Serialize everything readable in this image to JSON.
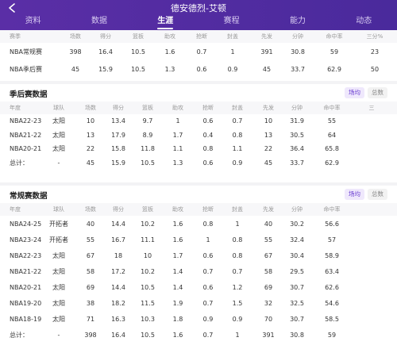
{
  "header": {
    "title": "德安德烈-艾顿",
    "tabs": [
      "资料",
      "数据",
      "生涯",
      "赛程",
      "能力",
      "动态"
    ],
    "active_tab": 2
  },
  "summary": {
    "columns": [
      "赛季",
      "场数",
      "得分",
      "篮板",
      "助攻",
      "抢断",
      "封盖",
      "先发",
      "分钟",
      "命中率",
      "三分%"
    ],
    "rows": [
      [
        "NBA常规赛",
        "398",
        "16.4",
        "10.5",
        "1.6",
        "0.7",
        "1",
        "391",
        "30.8",
        "59",
        "23"
      ],
      [
        "NBA季后赛",
        "45",
        "15.9",
        "10.5",
        "1.3",
        "0.6",
        "0.9",
        "45",
        "33.7",
        "62.9",
        "50"
      ]
    ]
  },
  "playoffs": {
    "title": "季后赛数据",
    "toggle": [
      "场均",
      "总数"
    ],
    "columns": [
      "年度",
      "球队",
      "场数",
      "得分",
      "篮板",
      "助攻",
      "抢断",
      "封盖",
      "先发",
      "分钟",
      "命中率",
      "三"
    ],
    "rows": [
      [
        "NBA22-23",
        "太阳",
        "10",
        "13.4",
        "9.7",
        "1",
        "0.6",
        "0.7",
        "10",
        "31.9",
        "55",
        ""
      ],
      [
        "NBA21-22",
        "太阳",
        "13",
        "17.9",
        "8.9",
        "1.7",
        "0.4",
        "0.8",
        "13",
        "30.5",
        "64",
        ""
      ],
      [
        "NBA20-21",
        "太阳",
        "22",
        "15.8",
        "11.8",
        "1.1",
        "0.8",
        "1.1",
        "22",
        "36.4",
        "65.8",
        ""
      ],
      [
        "总计：",
        "-",
        "45",
        "15.9",
        "10.5",
        "1.3",
        "0.6",
        "0.9",
        "45",
        "33.7",
        "62.9",
        ""
      ]
    ]
  },
  "regular": {
    "title": "常规赛数据",
    "toggle": [
      "场均",
      "总数"
    ],
    "columns": [
      "年度",
      "球队",
      "场数",
      "得分",
      "篮板",
      "助攻",
      "抢断",
      "封盖",
      "先发",
      "分钟",
      "命中率"
    ],
    "rows": [
      [
        "NBA24-25",
        "开拓者",
        "40",
        "14.4",
        "10.2",
        "1.6",
        "0.8",
        "1",
        "40",
        "30.2",
        "56.6"
      ],
      [
        "NBA23-24",
        "开拓者",
        "55",
        "16.7",
        "11.1",
        "1.6",
        "1",
        "0.8",
        "55",
        "32.4",
        "57"
      ],
      [
        "NBA22-23",
        "太阳",
        "67",
        "18",
        "10",
        "1.7",
        "0.6",
        "0.8",
        "67",
        "30.4",
        "58.9"
      ],
      [
        "NBA21-22",
        "太阳",
        "58",
        "17.2",
        "10.2",
        "1.4",
        "0.7",
        "0.7",
        "58",
        "29.5",
        "63.4"
      ],
      [
        "NBA20-21",
        "太阳",
        "69",
        "14.4",
        "10.5",
        "1.4",
        "0.6",
        "1.2",
        "69",
        "30.7",
        "62.6"
      ],
      [
        "NBA19-20",
        "太阳",
        "38",
        "18.2",
        "11.5",
        "1.9",
        "0.7",
        "1.5",
        "32",
        "32.5",
        "54.6"
      ],
      [
        "NBA18-19",
        "太阳",
        "71",
        "16.3",
        "10.3",
        "1.8",
        "0.9",
        "0.9",
        "70",
        "30.7",
        "58.5"
      ],
      [
        "总计：",
        "-",
        "398",
        "16.4",
        "10.5",
        "1.6",
        "0.7",
        "1",
        "391",
        "30.8",
        "59"
      ]
    ]
  },
  "icons": {
    "back": "back-arrow-icon"
  },
  "colors": {
    "header": "#5a2ea6",
    "accent": "#6b3fd1"
  }
}
